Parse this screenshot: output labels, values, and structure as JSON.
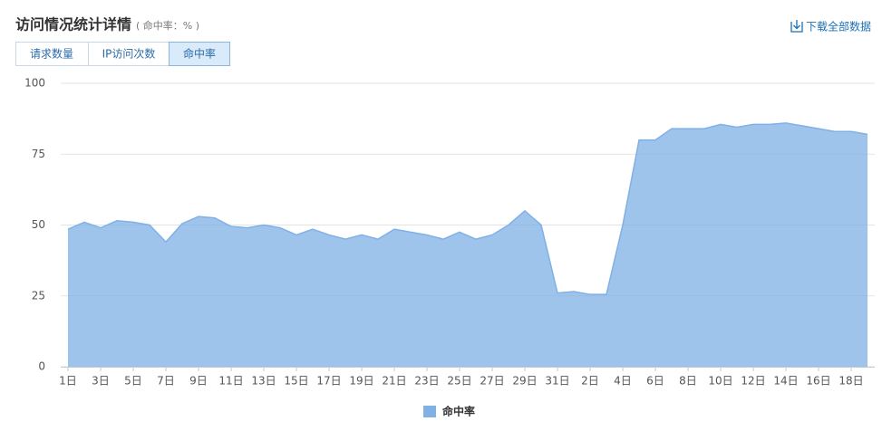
{
  "header": {
    "title": "访问情况统计详情",
    "subtitle": "( 命中率：% )",
    "download": "下载全部数据"
  },
  "tabs": [
    "请求数量",
    "IP访问次数",
    "命中率"
  ],
  "chart_data": {
    "type": "area",
    "categories": [
      "1日",
      null,
      "3日",
      null,
      "5日",
      null,
      "7日",
      null,
      "9日",
      null,
      "11日",
      null,
      "13日",
      null,
      "15日",
      null,
      "17日",
      null,
      "19日",
      null,
      "21日",
      null,
      "23日",
      null,
      "25日",
      null,
      "27日",
      null,
      "29日",
      null,
      "31日",
      null,
      "2日",
      null,
      "4日",
      null,
      "6日",
      null,
      "8日",
      null,
      "10日",
      null,
      "12日",
      null,
      "14日",
      null,
      "16日",
      null,
      "18日",
      null
    ],
    "series": [
      {
        "name": "命中率",
        "color": "#7fb0e6",
        "values": [
          48.5,
          51,
          49,
          51.5,
          51,
          50,
          44,
          50.5,
          53,
          52.5,
          49.5,
          49,
          50,
          49,
          46.5,
          48.5,
          46.5,
          45,
          46.5,
          45,
          48.5,
          47.5,
          46.5,
          45,
          47.5,
          45,
          46.5,
          50,
          55,
          50,
          26,
          26.5,
          25.5,
          25.5,
          50,
          80,
          80,
          84,
          84,
          84,
          85.5,
          84.5,
          85.5,
          85.5,
          86,
          85,
          84,
          83,
          83,
          82
        ]
      }
    ],
    "ylim": [
      0,
      100
    ],
    "yticks": [
      0,
      25,
      50,
      75,
      100
    ],
    "grid": true
  }
}
